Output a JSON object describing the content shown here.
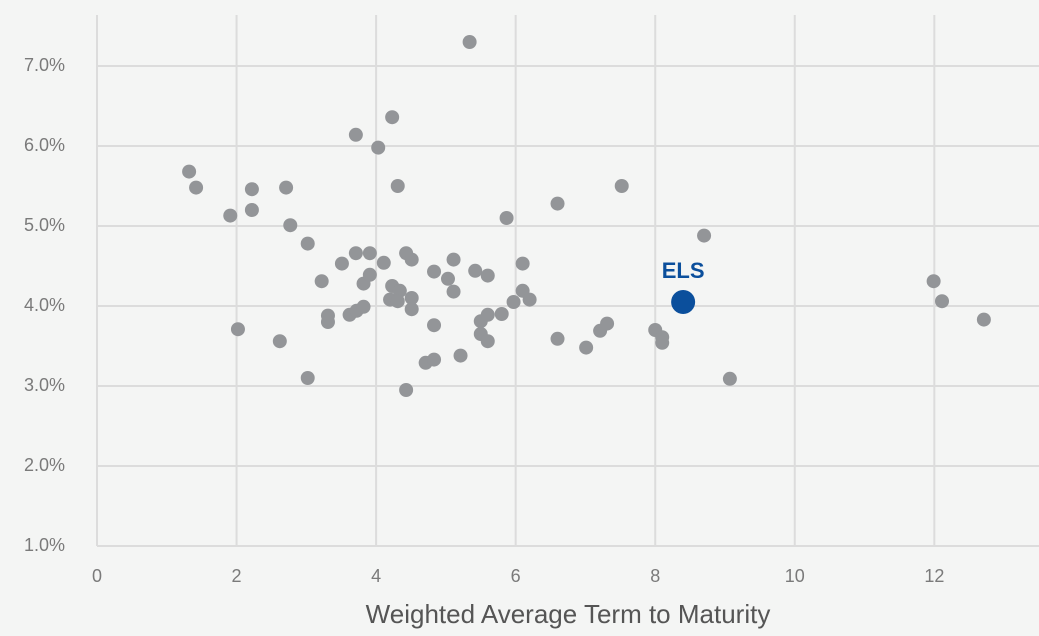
{
  "chart_data": {
    "type": "scatter",
    "x_label": "Weighted Average Term to Maturity",
    "xlim": [
      0,
      13.5
    ],
    "xticks": [
      0,
      2,
      4,
      6,
      8,
      10,
      12
    ],
    "ylim": [
      1,
      7.6
    ],
    "yticks": [
      {
        "value": 1,
        "label": "1.0%"
      },
      {
        "value": 2,
        "label": "2.0%"
      },
      {
        "value": 3,
        "label": "3.0%"
      },
      {
        "value": 4,
        "label": "4.0%"
      },
      {
        "value": 5,
        "label": "5.0%"
      },
      {
        "value": 6,
        "label": "6.0%"
      },
      {
        "value": 7,
        "label": "7.0%"
      }
    ],
    "grid": true,
    "series": [
      {
        "color": "#939598",
        "x": [
          1.32,
          1.42,
          1.91,
          2.22,
          2.22,
          2.02,
          2.71,
          2.77,
          2.62,
          3.02,
          3.02,
          3.22,
          3.31,
          3.31,
          3.51,
          3.71,
          3.71,
          3.62,
          3.72,
          3.82,
          3.82,
          3.91,
          3.91,
          4.03,
          4.11,
          4.23,
          4.23,
          4.2,
          4.31,
          4.34,
          4.31,
          4.43,
          4.51,
          4.51,
          4.51,
          4.43,
          4.83,
          4.83,
          4.71,
          4.83,
          5.03,
          5.11,
          5.11,
          5.21,
          5.34,
          5.42,
          5.6,
          5.5,
          5.6,
          5.5,
          5.6,
          5.8,
          5.87,
          5.97,
          6.1,
          6.1,
          6.2,
          6.6,
          6.6,
          7.01,
          7.21,
          7.31,
          7.52,
          8.0,
          8.1,
          8.1,
          8.7,
          9.07,
          11.99,
          12.11,
          12.71
        ],
        "values": [
          5.68,
          5.48,
          5.13,
          5.46,
          5.2,
          3.71,
          5.48,
          5.01,
          3.56,
          4.78,
          3.1,
          4.31,
          3.88,
          3.8,
          4.53,
          6.14,
          4.66,
          3.89,
          3.94,
          3.99,
          4.28,
          4.66,
          4.39,
          5.98,
          4.54,
          6.36,
          4.25,
          4.08,
          5.5,
          4.19,
          4.06,
          4.66,
          4.58,
          4.1,
          3.96,
          2.95,
          4.43,
          3.76,
          3.29,
          3.33,
          4.34,
          4.58,
          4.18,
          3.38,
          7.3,
          4.44,
          4.38,
          3.81,
          3.89,
          3.65,
          3.56,
          3.9,
          5.1,
          4.05,
          4.53,
          4.19,
          4.08,
          5.28,
          3.59,
          3.48,
          3.69,
          3.78,
          5.5,
          3.7,
          3.61,
          3.54,
          4.88,
          3.09,
          4.31,
          4.06,
          3.83
        ]
      },
      {
        "name": "ELS",
        "color": "#0b4f9c",
        "x": [
          8.4
        ],
        "values": [
          4.05
        ]
      }
    ]
  }
}
